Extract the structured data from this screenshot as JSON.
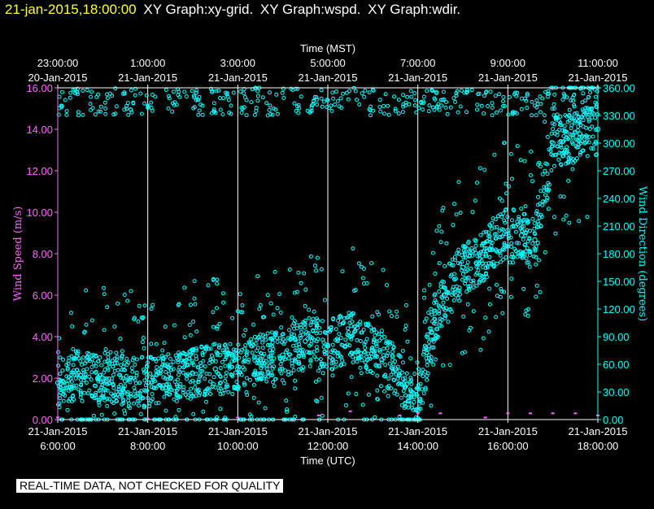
{
  "header": {
    "timestamp": "21-jan-2015,18:00:00",
    "graphs": [
      "XY Graph:xy-grid.",
      "XY Graph:wspd.",
      "XY Graph:wdir."
    ]
  },
  "disclaimer": "REAL-TIME DATA, NOT CHECKED FOR QUALITY",
  "colors": {
    "wspd": "#ff66ff",
    "wdir": "#00ffff",
    "timestamp": "#ffff33",
    "background": "#000000",
    "axis": "#ffffff"
  },
  "chart_data": {
    "type": "scatter",
    "grid": "vertical",
    "x_top_title": "Time (MST)",
    "x_bottom_title": "Time (UTC)",
    "x_range_utc_hours": [
      6,
      18
    ],
    "top_ticks": [
      {
        "time": "23:00:00",
        "date": "20-Jan-2015",
        "utc": 6
      },
      {
        "time": "1:00:00",
        "date": "21-Jan-2015",
        "utc": 8
      },
      {
        "time": "3:00:00",
        "date": "21-Jan-2015",
        "utc": 10
      },
      {
        "time": "5:00:00",
        "date": "21-Jan-2015",
        "utc": 12
      },
      {
        "time": "7:00:00",
        "date": "21-Jan-2015",
        "utc": 14
      },
      {
        "time": "9:00:00",
        "date": "21-Jan-2015",
        "utc": 16
      },
      {
        "time": "11:00:00",
        "date": "21-Jan-2015",
        "utc": 18
      }
    ],
    "bottom_ticks": [
      {
        "date": "21-Jan-2015",
        "time": "6:00:00",
        "utc": 6
      },
      {
        "date": "21-Jan-2015",
        "time": "8:00:00",
        "utc": 8
      },
      {
        "date": "21-Jan-2015",
        "time": "10:00:00",
        "utc": 10
      },
      {
        "date": "21-Jan-2015",
        "time": "12:00:00",
        "utc": 12
      },
      {
        "date": "21-Jan-2015",
        "time": "14:00:00",
        "utc": 14
      },
      {
        "date": "21-Jan-2015",
        "time": "16:00:00",
        "utc": 16
      },
      {
        "date": "21-Jan-2015",
        "time": "18:00:00",
        "utc": 18
      }
    ],
    "y_left": {
      "label": "Wind Speed (m/s)",
      "range": [
        0,
        16
      ],
      "ticks": [
        "0.00",
        "2.00",
        "4.00",
        "6.00",
        "8.00",
        "10.00",
        "12.00",
        "14.00",
        "16.00"
      ]
    },
    "y_right": {
      "label": "Wind Direction (degrees)",
      "range": [
        0,
        360
      ],
      "ticks": [
        "0.00",
        "30.00",
        "60.00",
        "90.00",
        "120.00",
        "150.00",
        "180.00",
        "210.00",
        "240.00",
        "270.00",
        "300.00",
        "330.00",
        "360.00"
      ]
    },
    "series": [
      {
        "key": "wspd",
        "axis": "left",
        "x_utc": [
          6.0,
          8.0,
          10.0,
          11.8,
          12.5,
          13.6,
          14.0,
          14.5,
          15.5,
          16.0,
          16.5,
          17.0,
          17.5,
          18.0
        ],
        "y": [
          0.1,
          0.05,
          0.1,
          0.2,
          0.4,
          0.2,
          0.3,
          0.3,
          0.1,
          0.3,
          0.3,
          0.3,
          0.3,
          0.2
        ]
      },
      {
        "key": "wdir",
        "axis": "right",
        "x_utc": [
          6.0,
          6.5,
          7.0,
          7.5,
          8.0,
          8.5,
          9.0,
          9.5,
          10.0,
          10.5,
          11.0,
          11.5,
          12.0,
          12.5,
          13.0,
          13.2,
          13.5,
          13.8,
          14.0,
          14.3,
          14.6,
          15.0,
          15.3,
          15.6,
          16.0,
          16.3,
          16.6,
          17.0,
          17.3,
          17.6,
          18.0
        ],
        "y": [
          40,
          48,
          45,
          42,
          40,
          45,
          50,
          55,
          55,
          65,
          70,
          85,
          80,
          90,
          75,
          65,
          55,
          20,
          10,
          95,
          135,
          165,
          170,
          185,
          205,
          200,
          195,
          300,
          305,
          310,
          315
        ]
      }
    ]
  }
}
